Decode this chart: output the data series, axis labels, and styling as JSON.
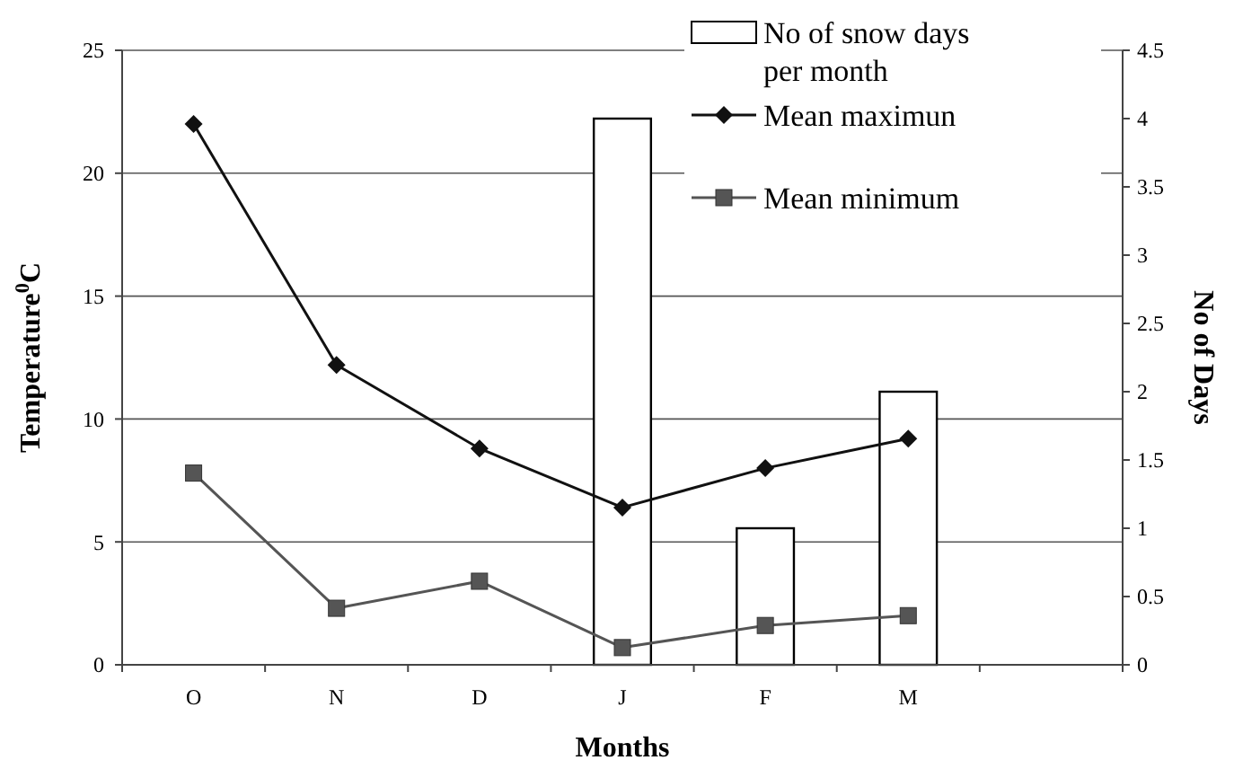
{
  "chart_data": {
    "type": "line",
    "xlabel": "Months",
    "ylabel": "Temperature$^{0}$C",
    "y2label": "No of Days",
    "categories": [
      "O",
      "N",
      "D",
      "J",
      "F",
      "M",
      null
    ],
    "ylim": [
      0,
      25
    ],
    "yticks": [
      0,
      5,
      10,
      15,
      20,
      25
    ],
    "y2lim": [
      0,
      4.5
    ],
    "y2ticks": [
      0,
      0.5,
      1,
      1.5,
      2,
      2.5,
      3,
      3.5,
      4,
      4.5
    ],
    "grid": "y",
    "legend": "top right",
    "series": [
      {
        "name": "No of snow days per month",
        "type": "bar",
        "axis": "y2",
        "color": "#ffffff",
        "values": [
          null,
          null,
          null,
          4,
          1,
          2,
          null
        ]
      },
      {
        "name": "Mean maximun",
        "color": "#111111",
        "marker": "diamond",
        "values": [
          22,
          12.2,
          8.8,
          6.4,
          8,
          9.2,
          null
        ]
      },
      {
        "name": "Mean minimum",
        "color": "#555555",
        "marker": "square",
        "values": [
          7.8,
          2.3,
          3.4,
          0.7,
          1.6,
          2.0,
          null
        ]
      }
    ]
  }
}
